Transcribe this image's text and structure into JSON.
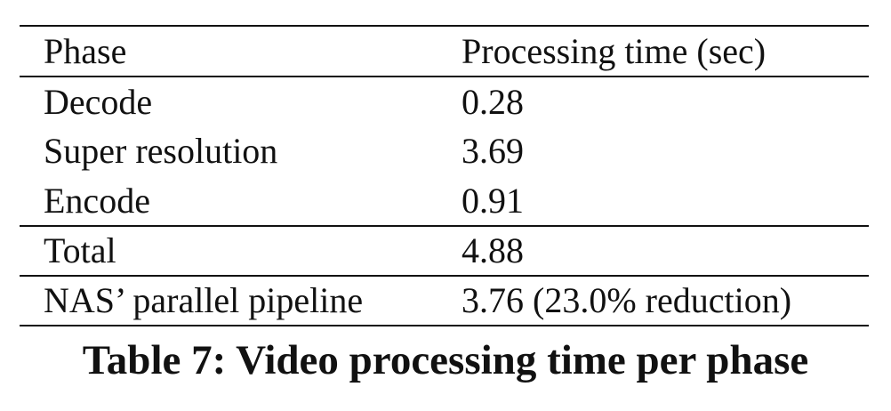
{
  "table": {
    "headers": [
      "Phase",
      "Processing time (sec)"
    ],
    "rows": [
      [
        "Decode",
        "0.28"
      ],
      [
        "Super resolution",
        "3.69"
      ],
      [
        "Encode",
        "0.91"
      ],
      [
        "Total",
        "4.88"
      ],
      [
        "NAS’ parallel pipeline",
        "3.76 (23.0% reduction)"
      ]
    ]
  },
  "caption": "Table 7: Video processing time per phase"
}
